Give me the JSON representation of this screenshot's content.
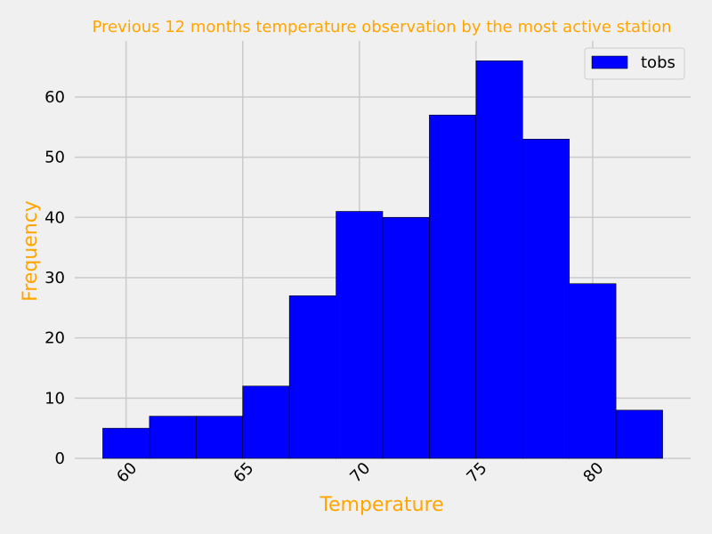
{
  "chart_data": {
    "type": "bar",
    "title": "Previous 12 months temperature observation by the most active station",
    "xlabel": "Temperature",
    "ylabel": "Frequency",
    "xlim": [
      57.8,
      84.2
    ],
    "ylim": [
      0,
      69.3
    ],
    "x_ticks": [
      60,
      65,
      70,
      75,
      80
    ],
    "y_ticks": [
      0,
      10,
      20,
      30,
      40,
      50,
      60
    ],
    "bin_edges": [
      59.0,
      61.0,
      63.0,
      65.0,
      67.0,
      69.0,
      71.0,
      73.0,
      75.0,
      77.0,
      79.0,
      81.0,
      83.0
    ],
    "series": [
      {
        "name": "tobs",
        "values": [
          5,
          7,
          7,
          12,
          27,
          41,
          40,
          57,
          66,
          53,
          29,
          8
        ]
      }
    ],
    "legend_position": "top-right",
    "grid": true,
    "colors": {
      "bar_fill": "#0000ff",
      "bar_edge": "#000000",
      "text_accent": "#ffa500",
      "grid": "#cbcbcb",
      "background": "#f0f0f0"
    }
  }
}
